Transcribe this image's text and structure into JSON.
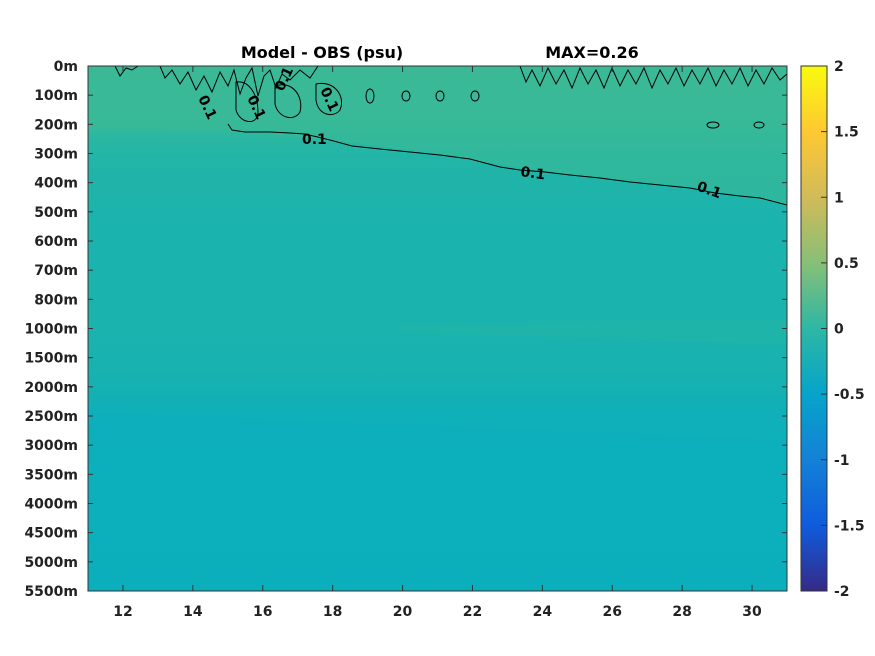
{
  "title": "Model - OBS (psu)",
  "max_label": "MAX=0.26",
  "chart_data": {
    "type": "heatmap",
    "title": "Model - OBS (psu)",
    "annotation": "MAX=0.26",
    "xlabel": "",
    "ylabel": "",
    "x_ticks": [
      12,
      14,
      16,
      18,
      20,
      22,
      24,
      26,
      28,
      30
    ],
    "x_range": [
      11,
      31
    ],
    "depth_levels": [
      "0m",
      "100m",
      "200m",
      "300m",
      "400m",
      "500m",
      "600m",
      "700m",
      "800m",
      "1000m",
      "1500m",
      "2000m",
      "2500m",
      "3000m",
      "3500m",
      "4000m",
      "4500m",
      "5000m",
      "5500m"
    ],
    "colorbar": {
      "ticks": [
        "2",
        "1.5",
        "1",
        "0.5",
        "0",
        "-0.5",
        "-1",
        "-1.5",
        "-2"
      ],
      "range": [
        -2,
        2
      ],
      "colormap": "parula",
      "stops": [
        "#352a87",
        "#0f5cdd",
        "#1481d6",
        "#06a4ca",
        "#2eb7a4",
        "#87bf77",
        "#d1bb59",
        "#fec832",
        "#f9fb0e"
      ]
    },
    "contour_levels": [
      0.1
    ],
    "contour_labels": [
      "0.1",
      "0.1",
      "0.1",
      "0.1",
      "0.1",
      "0.1",
      "0.1"
    ],
    "field_bands": [
      {
        "depth": "0m",
        "value": 0.15
      },
      {
        "depth": "100m",
        "value": 0.15
      },
      {
        "depth": "200m",
        "value": 0.12
      },
      {
        "depth": "300m",
        "value": 0.08
      },
      {
        "depth": "400m",
        "value": 0.06
      },
      {
        "depth": "500m",
        "value": 0.04
      },
      {
        "depth": "700m",
        "value": 0.03
      },
      {
        "depth": "1000m",
        "value": 0.04
      },
      {
        "depth": "1500m",
        "value": 0.03
      },
      {
        "depth": "2500m",
        "value": 0.01
      },
      {
        "depth": "3000m",
        "value": 0.0
      },
      {
        "depth": "5500m",
        "value": 0.0
      }
    ]
  }
}
